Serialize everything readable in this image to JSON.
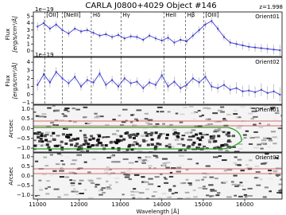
{
  "title": "CARLA J0800+4029 Object #146",
  "redshift_label": "z=1.998",
  "chart_data": [
    {
      "type": "line",
      "label": "Orient01",
      "y_label": "Flux",
      "y_unit": "[erg/s/cm²/Å]",
      "offset_label": "1e−19",
      "xlim": [
        10900,
        16900
      ],
      "ylim": [
        -0.8,
        5.6
      ],
      "yticks": [
        0,
        1,
        2,
        3,
        4,
        5
      ],
      "lines": [
        {
          "label": "[OII]",
          "wavelength": 11174
        },
        {
          "label": "[NeIII]",
          "wavelength": 11599
        },
        {
          "label": "Hδ",
          "wavelength": 12298
        },
        {
          "label": "Hγ",
          "wavelength": 13014
        },
        {
          "label": "HeII",
          "wavelength": 14049
        },
        {
          "label": "Hβ",
          "wavelength": 14573
        },
        {
          "label": "[OIII]",
          "wavelength": 15010
        }
      ],
      "series": [
        {
          "name": "Orient01",
          "color": "#3b3bd6",
          "x": [
            11000,
            11150,
            11300,
            11450,
            11600,
            11750,
            11900,
            12050,
            12200,
            12350,
            12500,
            12650,
            12800,
            12950,
            13100,
            13250,
            13400,
            13550,
            13700,
            13850,
            14000,
            14150,
            14300,
            14450,
            14600,
            14750,
            14900,
            15050,
            15200,
            15350,
            15500,
            15650,
            15800,
            15950,
            16100,
            16250,
            16400,
            16550,
            16700,
            16850
          ],
          "values": [
            3.5,
            4.0,
            3.2,
            3.8,
            3.0,
            2.5,
            3.2,
            2.8,
            3.0,
            2.6,
            2.2,
            2.4,
            2.0,
            2.3,
            1.8,
            2.1,
            2.0,
            1.6,
            2.2,
            1.8,
            1.5,
            1.9,
            1.2,
            1.6,
            1.4,
            2.2,
            3.0,
            3.8,
            4.3,
            3.2,
            2.0,
            1.2,
            1.0,
            0.8,
            0.6,
            0.5,
            0.4,
            0.3,
            0.2,
            0.1
          ],
          "errors": [
            0.6,
            0.6,
            0.5,
            0.5,
            0.5,
            0.5,
            0.4,
            0.4,
            0.4,
            0.4,
            0.4,
            0.4,
            0.4,
            0.4,
            0.4,
            0.4,
            0.4,
            0.4,
            0.4,
            0.4,
            0.5,
            0.5,
            0.5,
            0.5,
            0.5,
            0.5,
            0.5,
            0.5,
            0.5,
            0.5,
            0.5,
            0.5,
            0.5,
            0.6,
            0.6,
            0.6,
            0.6,
            0.7,
            0.7,
            0.8
          ]
        }
      ]
    },
    {
      "type": "line",
      "label": "Orient02",
      "y_label": "Flux",
      "y_unit": "[erg/s/cm²/Å]",
      "offset_label": "1e−19",
      "xlim": [
        10900,
        16900
      ],
      "ylim": [
        -1.2,
        4.6
      ],
      "yticks": [
        {
          "value": -1,
          "label": "−1"
        },
        0,
        1,
        2,
        3,
        4
      ],
      "series": [
        {
          "name": "Orient02",
          "color": "#3b3bd6",
          "x": [
            11000,
            11150,
            11300,
            11450,
            11600,
            11750,
            11900,
            12050,
            12200,
            12350,
            12500,
            12650,
            12800,
            12950,
            13100,
            13250,
            13400,
            13550,
            13700,
            13850,
            14000,
            14150,
            14300,
            14450,
            14600,
            14750,
            14900,
            15050,
            15200,
            15350,
            15500,
            15650,
            15800,
            15950,
            16100,
            16250,
            16400,
            16550,
            16700,
            16850
          ],
          "values": [
            1.2,
            2.5,
            1.5,
            2.8,
            2.0,
            1.4,
            2.2,
            1.0,
            1.8,
            1.5,
            2.6,
            1.2,
            1.8,
            1.0,
            2.0,
            1.4,
            1.6,
            0.8,
            1.5,
            1.2,
            2.4,
            1.0,
            1.6,
            0.8,
            1.2,
            2.0,
            1.5,
            2.2,
            1.0,
            0.8,
            1.2,
            0.6,
            0.8,
            0.4,
            0.5,
            0.3,
            0.6,
            0.2,
            0.4,
            0.0
          ],
          "errors": [
            0.7,
            0.7,
            0.6,
            0.6,
            0.6,
            0.5,
            0.5,
            0.5,
            0.5,
            0.5,
            0.5,
            0.5,
            0.5,
            0.5,
            0.5,
            0.5,
            0.5,
            0.5,
            0.5,
            0.5,
            0.6,
            0.6,
            0.6,
            0.6,
            0.6,
            0.6,
            0.6,
            0.6,
            0.6,
            0.6,
            0.6,
            0.6,
            0.7,
            0.7,
            0.7,
            0.7,
            0.8,
            0.8,
            0.9,
            0.9
          ]
        }
      ]
    },
    {
      "type": "image",
      "label": "Orient01",
      "y_label": "Arcsec",
      "xlim": [
        10900,
        16900
      ],
      "ylim": [
        -1.2,
        1.2
      ],
      "yticks": [
        {
          "value": 1,
          "label": "1.0"
        },
        0.5,
        {
          "value": 0,
          "label": "0.0"
        },
        {
          "value": -0.5,
          "label": "−0.5"
        },
        {
          "value": -1,
          "label": "−1.0"
        }
      ]
    },
    {
      "type": "image",
      "label": "Orient02",
      "y_label": "Arcsec",
      "x_label": "Wavelength [Å]",
      "xlim": [
        10900,
        16900
      ],
      "ylim": [
        -1.2,
        1.2
      ],
      "yticks": [
        {
          "value": 1,
          "label": "1.0"
        },
        0.5,
        {
          "value": 0,
          "label": "0.0"
        },
        {
          "value": -0.5,
          "label": "−0.5"
        },
        {
          "value": -1,
          "label": "−1.0"
        }
      ],
      "xticks": [
        11000,
        12000,
        13000,
        14000,
        15000,
        16000
      ]
    }
  ]
}
